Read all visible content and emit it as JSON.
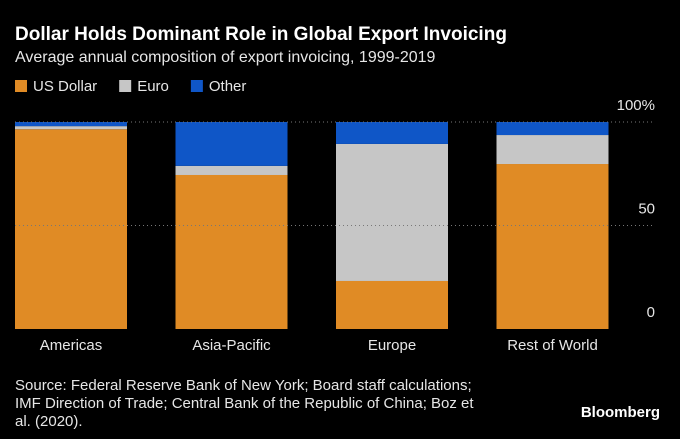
{
  "chart_data": {
    "type": "stacked_bar",
    "title": "Dollar Holds Dominant Role in Global Export Invoicing",
    "subtitle": "Average annual composition of export invoicing, 1999-2019",
    "categories": [
      "Americas",
      "Asia-Pacific",
      "Europe",
      "Rest of World"
    ],
    "series": [
      {
        "name": "US Dollar",
        "color": "#e08b25",
        "values": [
          96.5,
          74.4,
          23.2,
          79.7
        ]
      },
      {
        "name": "Euro",
        "color": "#c6c6c6",
        "values": [
          1.5,
          4.4,
          66.2,
          14
        ]
      },
      {
        "name": "Other",
        "color": "#0f56c7",
        "values": [
          2,
          21.2,
          10.6,
          6.3
        ]
      }
    ],
    "ylim": [
      0,
      100
    ],
    "yticks": [
      0,
      50,
      {
        "value": 100,
        "label": "100%"
      }
    ],
    "grid": true,
    "legend": "top-left",
    "source": [
      "Source: Federal Reserve Bank of New York; Board staff calculations;",
      "IMF Direction of Trade; Central Bank of the Republic of China; Boz et",
      "al. (2020)."
    ],
    "brand": "Bloomberg"
  }
}
